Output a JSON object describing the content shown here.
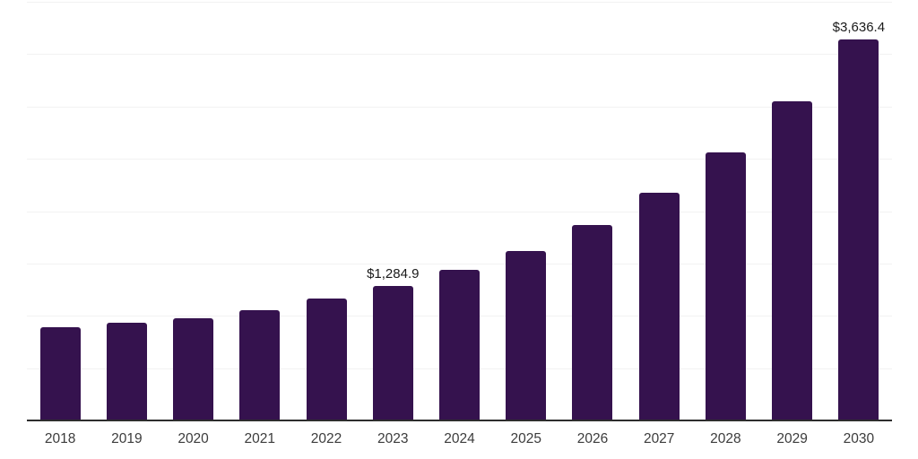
{
  "chart_data": {
    "type": "bar",
    "title": "",
    "xlabel": "",
    "ylabel": "",
    "categories": [
      "2018",
      "2019",
      "2020",
      "2021",
      "2022",
      "2023",
      "2024",
      "2025",
      "2026",
      "2027",
      "2028",
      "2029",
      "2030"
    ],
    "values": [
      890,
      930,
      975,
      1055,
      1165,
      1284.9,
      1435,
      1620,
      1870,
      2180,
      2560,
      3050,
      3636.4
    ],
    "data_labels": [
      "",
      "",
      "",
      "",
      "",
      "$1,284.9",
      "",
      "",
      "",
      "",
      "",
      "",
      "$3,636.4"
    ],
    "ylim": [
      0,
      4000
    ],
    "grid_interval": 500,
    "grid": true,
    "y_axis_tick_labels_visible": false,
    "legend": "none",
    "colors": {
      "bar": "#35124e",
      "gridline": "#f2f2f2",
      "axis_line": "#2d2d2d",
      "tick_label": "#3c3c3c",
      "data_label": "#1a1a1a",
      "background": "#ffffff"
    }
  }
}
